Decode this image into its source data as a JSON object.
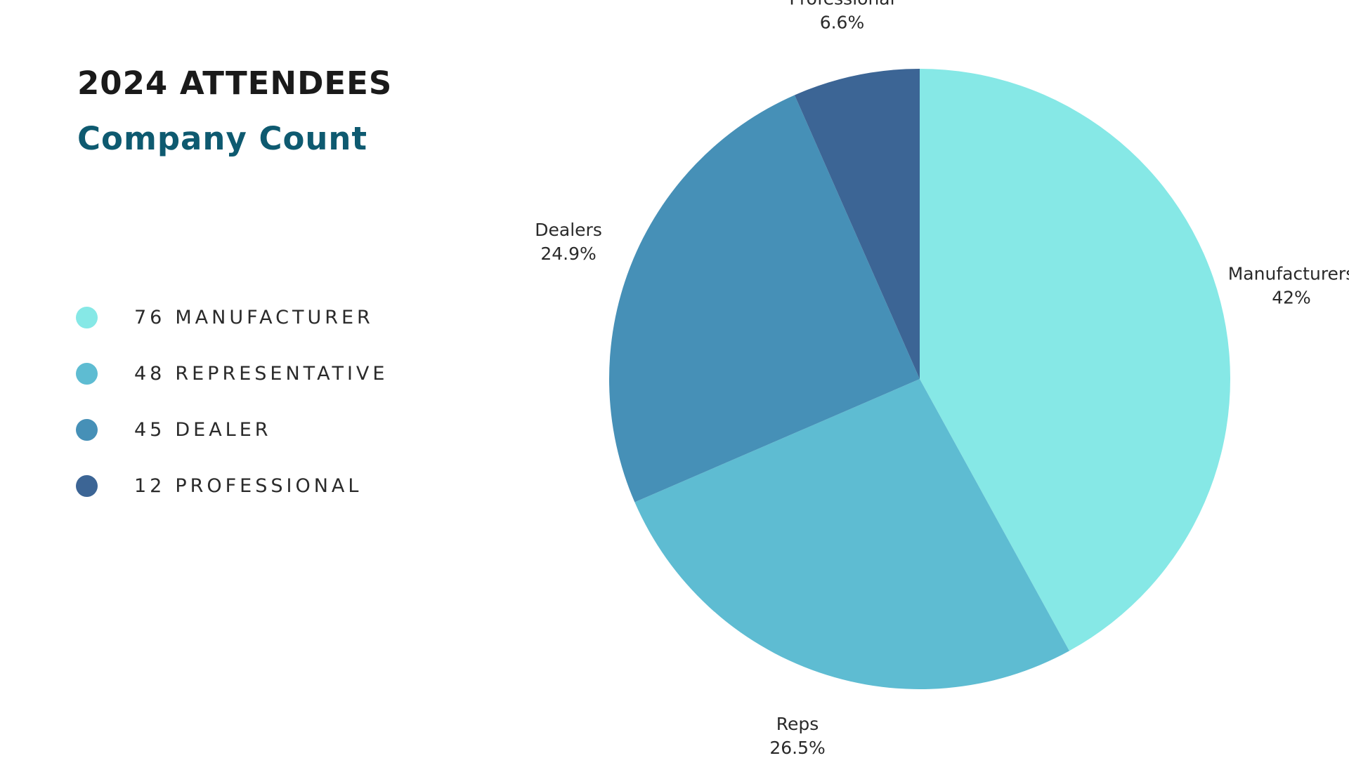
{
  "title": "2024 ATTENDEES",
  "subtitle": "Company Count",
  "legend": [
    {
      "count": "76",
      "label": "MANUFACTURER",
      "color": "#86e8e6"
    },
    {
      "count": "48",
      "label": "REPRESENTATIVE",
      "color": "#5ebcd2"
    },
    {
      "count": "45",
      "label": "DEALER",
      "color": "#4690b7"
    },
    {
      "count": "12",
      "label": "PROFESSIONAL",
      "color": "#3c6595"
    }
  ],
  "chart_data": {
    "type": "pie",
    "start_angle": "12 o'clock",
    "direction": "clockwise",
    "slices": [
      {
        "label": "Manufacturers",
        "percent_label": "42%",
        "value": 42,
        "color": "#86e8e6"
      },
      {
        "label": "Reps",
        "percent_label": "26.5%",
        "value": 26.5,
        "color": "#5ebcd2"
      },
      {
        "label": "Dealers",
        "percent_label": "24.9%",
        "value": 24.9,
        "color": "#4690b7"
      },
      {
        "label": "Professional",
        "percent_label": "6.6%",
        "value": 6.6,
        "color": "#3c6595"
      }
    ]
  }
}
